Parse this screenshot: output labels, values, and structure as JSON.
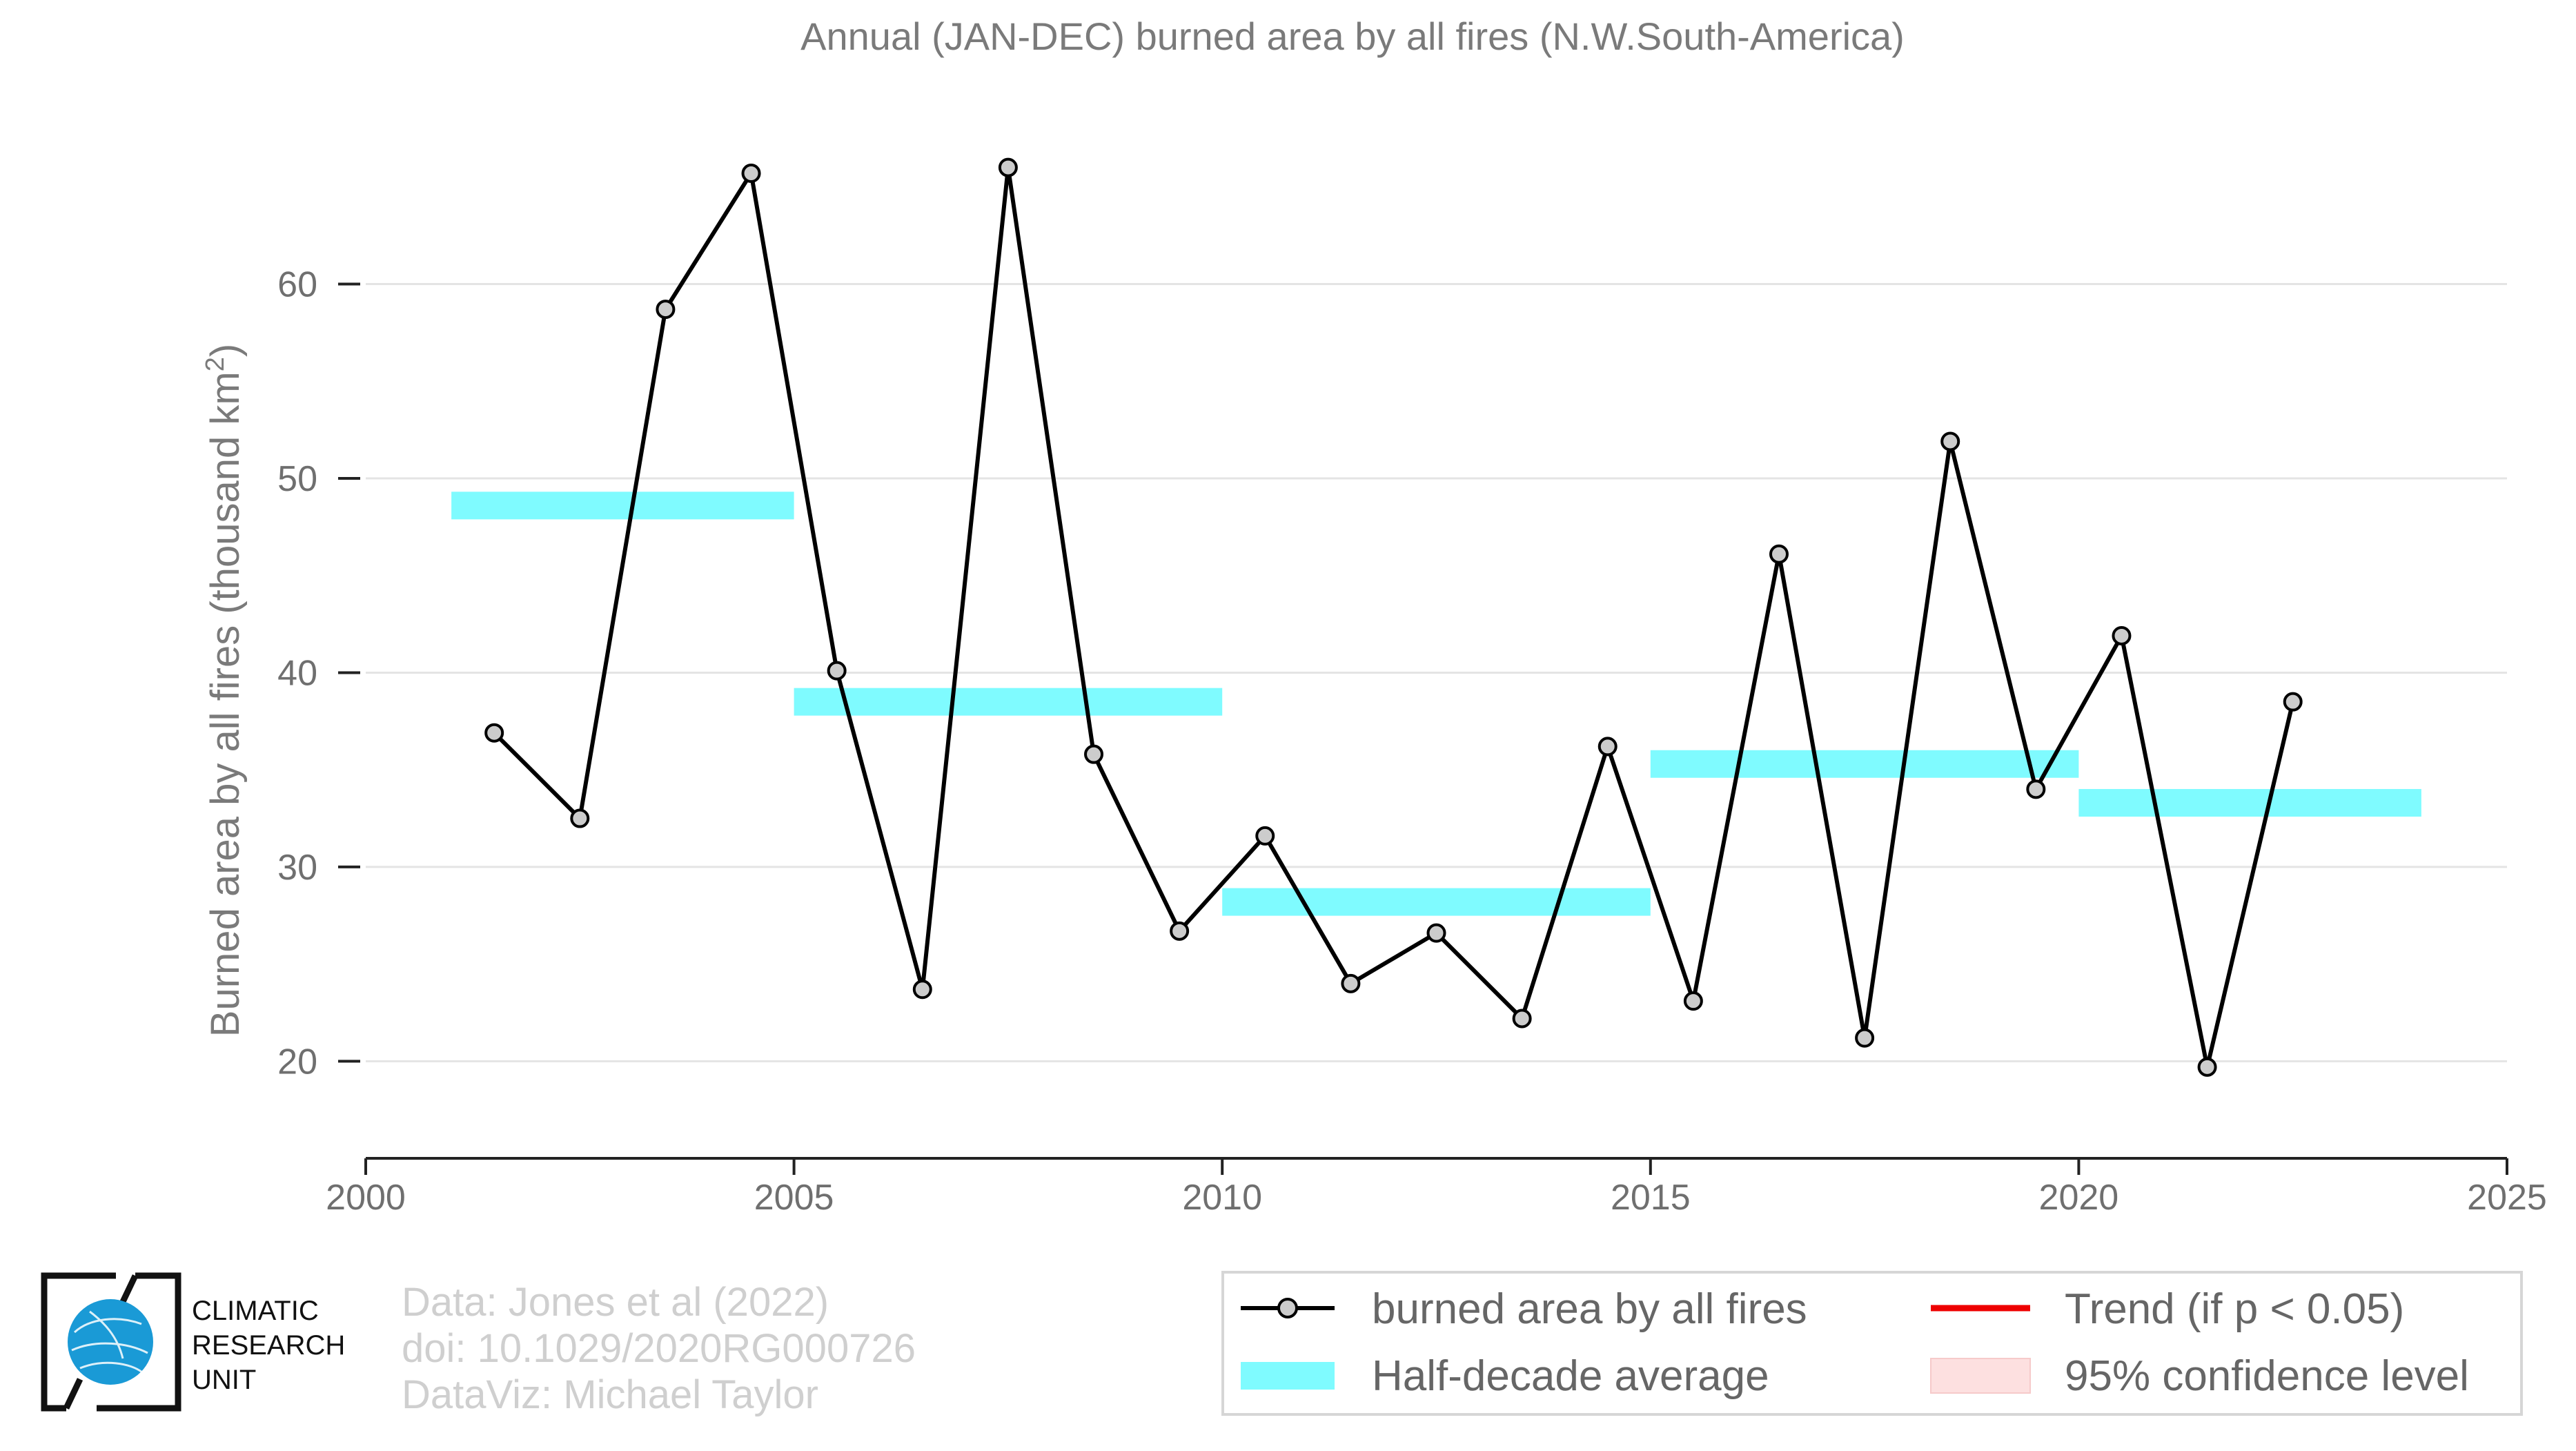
{
  "chart_data": {
    "type": "line",
    "title": "Annual (JAN-DEC) burned area by all fires (N.W.South-America)",
    "ylabel_main": "Burned area by all fires (thousand km",
    "ylabel_sup": "2",
    "ylabel_tail": ")",
    "xlim": [
      2000,
      2025
    ],
    "ylim": [
      16,
      70
    ],
    "xticks": [
      2000,
      2005,
      2010,
      2015,
      2020,
      2025
    ],
    "xtick_labels": [
      "2000",
      "2005",
      "2010",
      "2015",
      "2020",
      "2025"
    ],
    "yticks": [
      20,
      30,
      40,
      50,
      60
    ],
    "ytick_labels": [
      "20",
      "30",
      "40",
      "50",
      "60"
    ],
    "grid": "horizontal",
    "series": [
      {
        "name": "burned area by all fires",
        "color": "#000000",
        "marker_fill": "#cccccc",
        "x": [
          2001.5,
          2002.5,
          2003.5,
          2004.5,
          2005.5,
          2006.5,
          2007.5,
          2008.5,
          2009.5,
          2010.5,
          2011.5,
          2012.5,
          2013.5,
          2014.5,
          2015.5,
          2016.5,
          2017.5,
          2018.5,
          2019.5,
          2020.5,
          2021.5,
          2022.5
        ],
        "y": [
          36.9,
          32.5,
          58.7,
          65.7,
          40.1,
          23.7,
          66.0,
          35.8,
          26.7,
          31.6,
          24.0,
          26.6,
          22.2,
          36.2,
          23.1,
          46.1,
          21.2,
          51.9,
          34.0,
          41.9,
          19.7,
          38.5
        ]
      }
    ],
    "half_decade_average": {
      "name": "Half-decade average",
      "color": "#7ffbff",
      "segments": [
        {
          "x0": 2001,
          "x1": 2005,
          "y": 48.6
        },
        {
          "x0": 2005,
          "x1": 2010,
          "y": 38.5
        },
        {
          "x0": 2010,
          "x1": 2015,
          "y": 28.2
        },
        {
          "x0": 2015,
          "x1": 2020,
          "y": 35.3
        },
        {
          "x0": 2020,
          "x1": 2024,
          "y": 33.3
        }
      ]
    },
    "legend": {
      "position": "bottom-right",
      "items": [
        {
          "label": "burned area by all fires",
          "kind": "line-marker",
          "color": "#000000"
        },
        {
          "label": "Trend (if p < 0.05)",
          "kind": "line",
          "color": "#ee0000"
        },
        {
          "label": "Half-decade average",
          "kind": "band",
          "color": "#7ffbff"
        },
        {
          "label": "95% confidence level",
          "kind": "patch",
          "color": "#fde0e0"
        }
      ]
    }
  },
  "credits": {
    "line1": "Data: Jones et al (2022)",
    "line2": "doi: 10.1029/2020RG000726",
    "line3": "DataViz: Michael Taylor"
  },
  "logo": {
    "line1": "CLIMATIC",
    "line2": "RESEARCH",
    "line3": "UNIT",
    "globe_color": "#1a9ad6"
  }
}
